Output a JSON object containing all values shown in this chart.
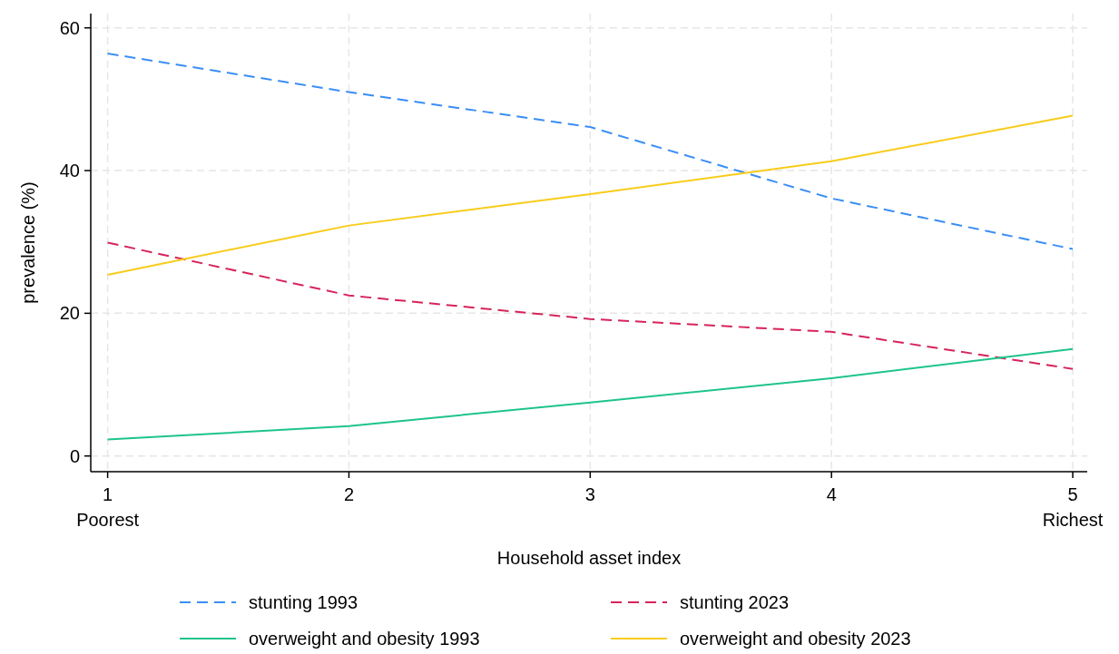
{
  "chart_data": {
    "type": "line",
    "xlabel": "Household asset index",
    "ylabel": "prevalence (%)",
    "x": [
      1,
      2,
      3,
      4,
      5
    ],
    "xlim": [
      0.93,
      5.06
    ],
    "xticks": [
      {
        "value": 1,
        "label": "1\nPoorest"
      },
      2,
      3,
      4,
      {
        "value": 5,
        "label": "5\nRichest"
      }
    ],
    "ylim": [
      -2.2,
      62
    ],
    "yticks": [
      0,
      20,
      40,
      60
    ],
    "grid": true,
    "legend": "bottom",
    "marker": "none",
    "series": [
      {
        "name": "stunting 1993",
        "color": "#3a8ef6",
        "line_style": "dashed",
        "values": [
          56.4,
          51.0,
          46.1,
          36.1,
          29.0
        ]
      },
      {
        "name": "stunting 2023",
        "color": "#d6245a",
        "line_style": "dashed",
        "values": [
          29.9,
          22.5,
          19.2,
          17.4,
          12.2
        ]
      },
      {
        "name": "overweight and obesity 1993",
        "color": "#1ec48a",
        "line_style": "solid",
        "values": [
          2.3,
          4.2,
          7.5,
          10.9,
          15.0
        ]
      },
      {
        "name": "overweight and obesity 2023",
        "color": "#f8cc1b",
        "line_style": "solid",
        "values": [
          25.4,
          32.3,
          36.7,
          41.3,
          47.7
        ]
      }
    ]
  }
}
